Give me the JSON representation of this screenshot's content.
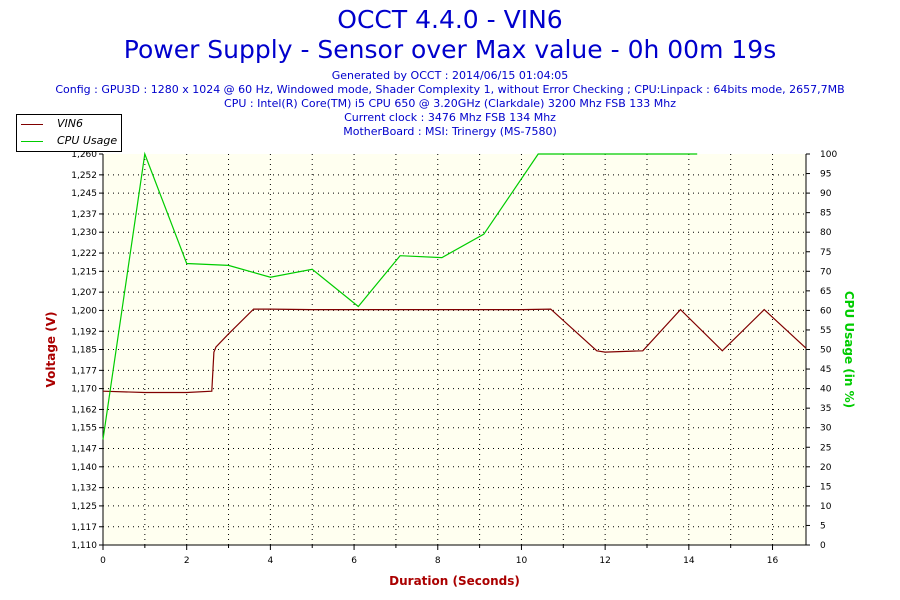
{
  "header": {
    "title": "OCCT 4.4.0 - VIN6",
    "subtitle": "Power Supply - Sensor over Max value - 0h 00m 19s",
    "info": [
      "Generated by OCCT : 2014/06/15 01:04:05",
      "Config : GPU3D : 1280 x 1024 @ 60 Hz, Windowed mode, Shader Complexity 1, without Error Checking ; CPU:Linpack : 64bits mode, 2657,7MB",
      "CPU : Intel(R) Core(TM) i5 CPU 650 @ 3.20GHz (Clarkdale) 3200 Mhz FSB 133 Mhz",
      "Current clock : 3476 Mhz FSB 134 Mhz",
      "MotherBoard : MSI: Trinergy (MS-7580)"
    ]
  },
  "colors": {
    "header": "#0000cc",
    "vin6": "#800000",
    "cpu": "#00cc00",
    "plot_bg": "#fffff0",
    "grid": "#000000"
  },
  "chart_data": {
    "type": "line",
    "xlabel": "Duration (Seconds)",
    "ylabel": "Voltage (V)",
    "y2label": "CPU Usage (in %)",
    "xlim": [
      0,
      16.8
    ],
    "ylim": [
      1.11,
      1.26
    ],
    "y2lim": [
      0,
      100
    ],
    "xticks": [
      0,
      2,
      4,
      6,
      8,
      10,
      12,
      14,
      16
    ],
    "yticks": [
      1.11,
      1.117,
      1.125,
      1.132,
      1.14,
      1.147,
      1.155,
      1.162,
      1.17,
      1.177,
      1.185,
      1.192,
      1.2,
      1.207,
      1.215,
      1.222,
      1.23,
      1.237,
      1.245,
      1.252,
      1.26
    ],
    "yticklabels": [
      "1,110",
      "1,117",
      "1,125",
      "1,132",
      "1,140",
      "1,147",
      "1,155",
      "1,162",
      "1,170",
      "1,177",
      "1,185",
      "1,192",
      "1,200",
      "1,207",
      "1,215",
      "1,222",
      "1,230",
      "1,237",
      "1,245",
      "1,252",
      "1,260"
    ],
    "y2ticks": [
      0,
      5,
      10,
      15,
      20,
      25,
      30,
      35,
      40,
      45,
      50,
      55,
      60,
      65,
      70,
      75,
      80,
      85,
      90,
      95,
      100
    ],
    "grid": true,
    "legend_position": "top-left",
    "series": [
      {
        "name": "VIN6",
        "axis": "left",
        "x": [
          0,
          1,
          2,
          2.6,
          2.65,
          2.7,
          3.0,
          3.6,
          4.0,
          5,
          6,
          7,
          8,
          9,
          10,
          10.7,
          11.8,
          12.0,
          12.9,
          13.8,
          14.8,
          15.8,
          16.8
        ],
        "y": [
          1.169,
          1.1685,
          1.1685,
          1.169,
          1.184,
          1.186,
          1.191,
          1.2005,
          1.2005,
          1.2003,
          1.2003,
          1.2003,
          1.2003,
          1.2003,
          1.2003,
          1.2005,
          1.1845,
          1.184,
          1.1845,
          1.2003,
          1.1845,
          1.2003,
          1.1855
        ]
      },
      {
        "name": "CPU Usage",
        "axis": "right",
        "x": [
          0,
          1.0,
          2.0,
          3.0,
          4.0,
          5.0,
          6.1,
          7.1,
          8.1,
          9.1,
          10.4,
          11.4,
          12.4,
          13.4,
          14.2
        ],
        "y": [
          27,
          100,
          72,
          71.5,
          68.5,
          70.5,
          61,
          74,
          73.5,
          79.5,
          100,
          100,
          100,
          100,
          100
        ]
      }
    ]
  }
}
